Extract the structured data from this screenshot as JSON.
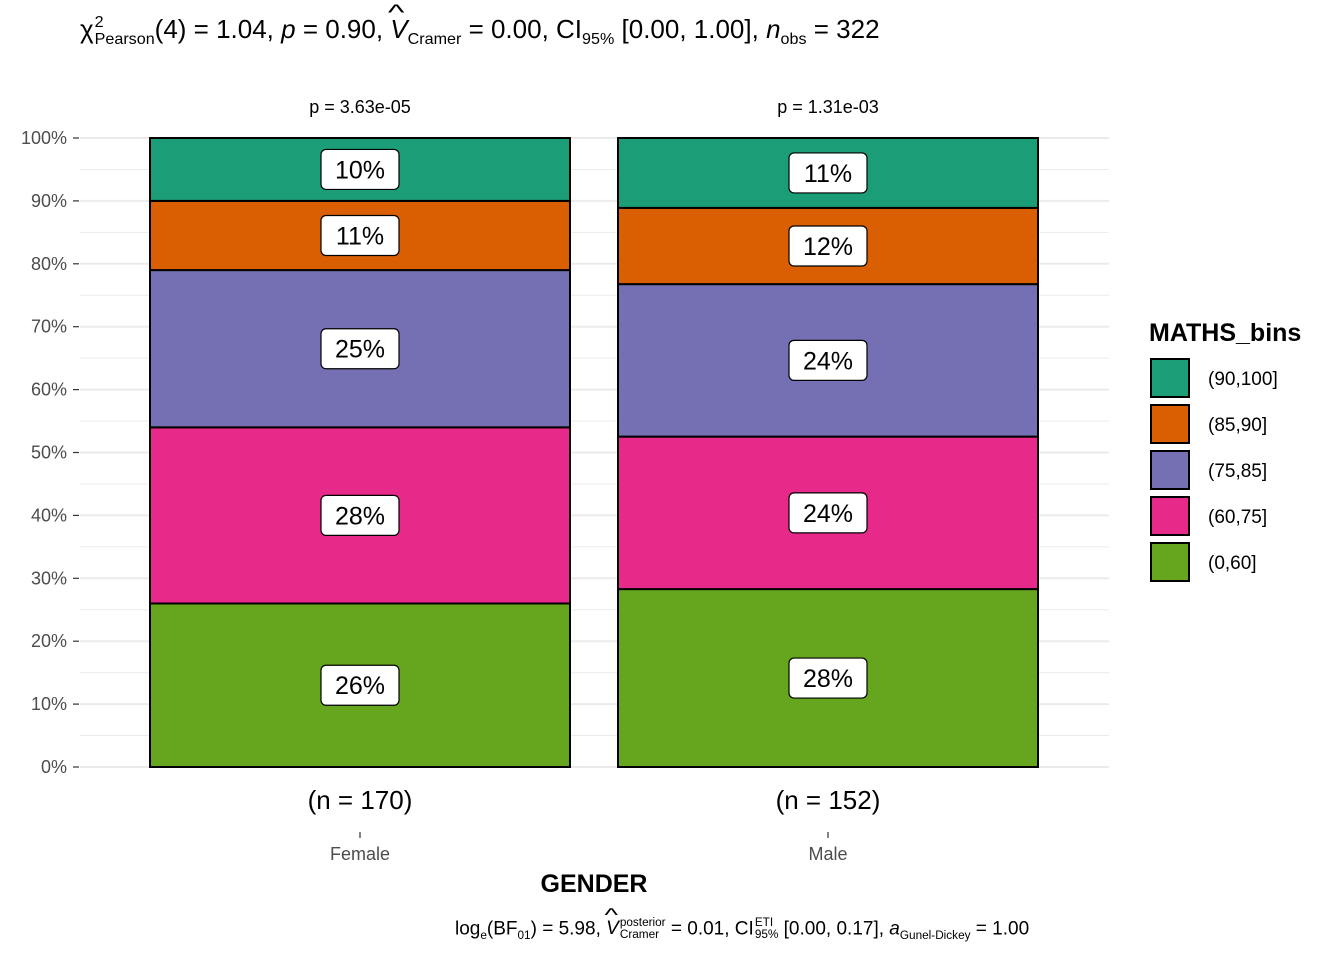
{
  "chart_data": {
    "type": "bar",
    "stacked": true,
    "percent": true,
    "title_parts": {
      "chi": "χ",
      "chi_sup": "2",
      "chi_sub": "Pearson",
      "df": "(4) = 1.04, ",
      "p_label": "p",
      "p_value": " = 0.90, ",
      "v_label": "V",
      "v_sub": "Cramer",
      "v_value": " = 0.00, CI",
      "ci_sub": "95%",
      "ci_value": " [0.00, 1.00], ",
      "n_label": "n",
      "n_sub": "obs",
      "n_value": " = 322"
    },
    "caption_parts": {
      "log": "log",
      "log_sub": "e",
      "bf_open": "(BF",
      "bf_sub": "01",
      "bf_value": ") = 5.98, ",
      "v_label": "V",
      "v_sup": "posterior",
      "v_sub": "Cramer",
      "v_value": " = 0.01, CI",
      "ci_sup": "ETI",
      "ci_sub": "95%",
      "ci_value": " [0.00, 0.17], ",
      "a_label": "a",
      "a_sub": "Gunel-Dickey",
      "a_value": " = 1.00"
    },
    "xlabel": "GENDER",
    "ylabel": "",
    "ylim": [
      0,
      100
    ],
    "y_ticks": [
      "0%",
      "10%",
      "20%",
      "30%",
      "40%",
      "50%",
      "60%",
      "70%",
      "80%",
      "90%",
      "100%"
    ],
    "categories": [
      "Female",
      "Male"
    ],
    "category_counts": [
      "(n = 170)",
      "(n = 152)"
    ],
    "category_pvalues": [
      "p = 3.63e-05",
      "p = 1.31e-03"
    ],
    "legend_title": "MATHS_bins",
    "legend_position": "right",
    "grid": true,
    "series": [
      {
        "name": "(0,60]",
        "color": "#66A61E",
        "values": [
          26,
          28
        ],
        "labels": [
          "26%",
          "28%"
        ]
      },
      {
        "name": "(60,75]",
        "color": "#E7298A",
        "values": [
          28,
          24
        ],
        "labels": [
          "28%",
          "24%"
        ]
      },
      {
        "name": "(75,85]",
        "color": "#7570B3",
        "values": [
          25,
          24
        ],
        "labels": [
          "25%",
          "24%"
        ]
      },
      {
        "name": "(85,90]",
        "color": "#D95F02",
        "values": [
          11,
          12
        ],
        "labels": [
          "11%",
          "12%"
        ]
      },
      {
        "name": "(90,100]",
        "color": "#1B9E77",
        "values": [
          10,
          11
        ],
        "labels": [
          "10%",
          "11%"
        ]
      }
    ],
    "legend_order": [
      "(90,100]",
      "(85,90]",
      "(75,85]",
      "(60,75]",
      "(0,60]"
    ]
  }
}
